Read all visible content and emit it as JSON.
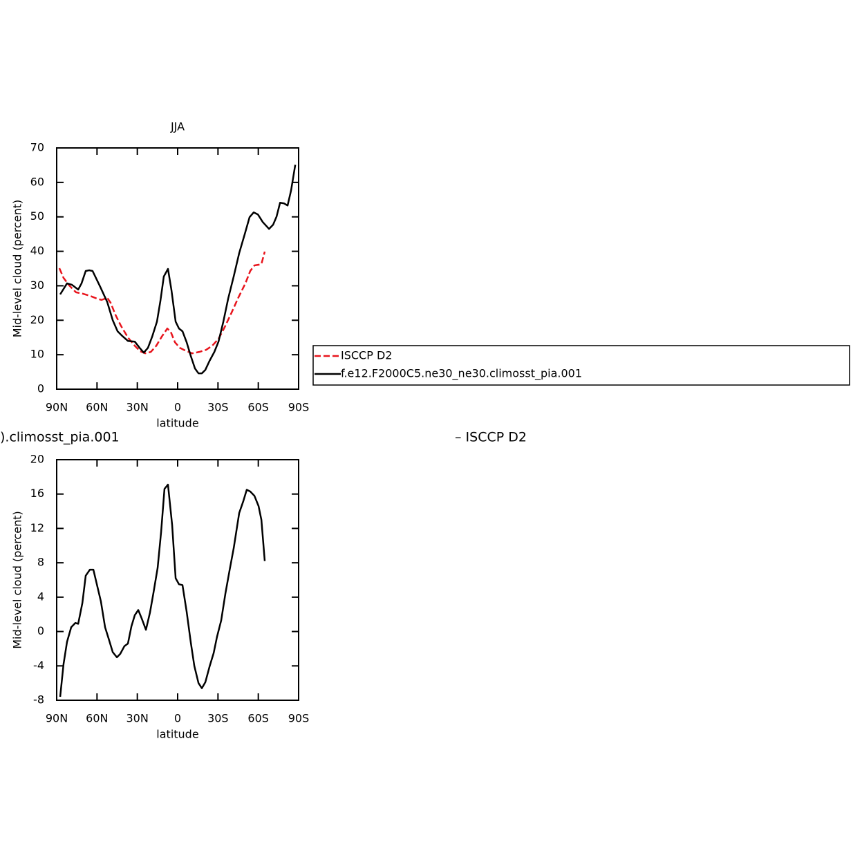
{
  "chart_data": [
    {
      "type": "line",
      "title": "JJA",
      "xlabel": "latitude",
      "ylabel": "Mid-level cloud (percent)",
      "xlim": [
        90,
        -90
      ],
      "xticks": [
        {
          "value": 90,
          "label": "90N"
        },
        {
          "value": 60,
          "label": "60N"
        },
        {
          "value": 30,
          "label": "30N"
        },
        0,
        {
          "value": -30,
          "label": "30S"
        },
        {
          "value": -60,
          "label": "60S"
        },
        {
          "value": -90,
          "label": "90S"
        }
      ],
      "ylim": [
        0,
        70
      ],
      "yticks": [
        0,
        10,
        20,
        30,
        40,
        50,
        60,
        70
      ],
      "legend": "right",
      "series": [
        {
          "name": "ISCCP D2",
          "color": "#e8141c",
          "dash": true,
          "x": [
            88,
            84.9,
            80.7,
            75.6,
            70.5,
            65.3,
            60.2,
            56.6,
            52.4,
            49.9,
            46.3,
            42.2,
            37,
            31.9,
            27.8,
            24.2,
            20,
            15.9,
            11.9,
            7.7,
            5.1,
            2,
            -1.6,
            -5.7,
            -10.8,
            -16,
            -21.1,
            -25.7,
            -30.4,
            -35,
            -40.1,
            -45.3,
            -50.4,
            -54,
            -57.1,
            -60.2,
            -62.3,
            -64.8
          ],
          "values": [
            35.1,
            32.3,
            30.1,
            28.1,
            27.7,
            27.1,
            26.3,
            25.9,
            26.5,
            25.1,
            21.6,
            18.4,
            15,
            12.6,
            11,
            10.4,
            10.8,
            12.6,
            15.2,
            17.6,
            16.6,
            13.6,
            12,
            11.2,
            10.4,
            10.8,
            11.4,
            12.6,
            14.6,
            18,
            22.2,
            26.7,
            30.7,
            34.3,
            35.9,
            36.1,
            36.3,
            39.9
          ]
        },
        {
          "name": "f.e12.F2000C5.ne30_ne30.climosst_pia.001",
          "color": "#000000",
          "dash": false,
          "x": [
            87.4,
            82.3,
            78.7,
            74,
            71.5,
            68.4,
            65.8,
            63.3,
            57.6,
            52.4,
            48.3,
            44.7,
            41.1,
            37,
            31.9,
            28.3,
            25.2,
            22.1,
            19,
            15.4,
            12.8,
            10.3,
            7.2,
            4.6,
            1.5,
            -1,
            -3.6,
            -6.7,
            -9.8,
            -12.9,
            -15.5,
            -18,
            -20.6,
            -23.7,
            -27.3,
            -30.4,
            -34,
            -37.6,
            -41.7,
            -45.8,
            -50,
            -53.5,
            -56.6,
            -59.7,
            -63.3,
            -68,
            -71,
            -73.6,
            -76.2,
            -79.2,
            -81.8,
            -84.4,
            -87.5
          ],
          "values": [
            27.5,
            30.7,
            30.3,
            28.9,
            30.7,
            34.3,
            34.5,
            34.3,
            29.7,
            25.3,
            20,
            16.8,
            15.4,
            14,
            13.8,
            12,
            10.6,
            12,
            15.2,
            19.6,
            25.7,
            32.7,
            34.9,
            28.7,
            19.6,
            17.6,
            16.8,
            13.6,
            9.6,
            6,
            4.6,
            4.6,
            5.6,
            8.2,
            10.8,
            13.8,
            19.6,
            26.3,
            32.7,
            39.5,
            45.1,
            49.9,
            51.3,
            50.7,
            48.5,
            46.5,
            47.7,
            50.1,
            54.1,
            53.9,
            53.3,
            57.7,
            65.1
          ]
        }
      ]
    },
    {
      "type": "line",
      "left_title": ").climosst_pia.001",
      "right_title": "– ISCCP D2",
      "xlabel": "latitude",
      "ylabel": "Mid-level cloud (percent)",
      "xlim": [
        90,
        -90
      ],
      "xticks": [
        {
          "value": 90,
          "label": "90N"
        },
        {
          "value": 60,
          "label": "60N"
        },
        {
          "value": 30,
          "label": "30N"
        },
        0,
        {
          "value": -30,
          "label": "30S"
        },
        {
          "value": -60,
          "label": "60S"
        },
        {
          "value": -90,
          "label": "90S"
        }
      ],
      "ylim": [
        -8,
        20
      ],
      "yticks": [
        -8,
        -4,
        0,
        4,
        8,
        12,
        16,
        20
      ],
      "series": [
        {
          "color": "#000000",
          "dash": false,
          "x": [
            87.4,
            84.9,
            82.3,
            79.2,
            76.1,
            74,
            70.9,
            68.4,
            65.3,
            62.7,
            57.1,
            54,
            51.4,
            48.3,
            45.2,
            42.7,
            39.6,
            37,
            34.4,
            31.9,
            29.3,
            26.7,
            23.6,
            20.6,
            18,
            14.9,
            12.3,
            9.8,
            7.2,
            4.1,
            1.5,
            -1,
            -3.6,
            -6.7,
            -9.8,
            -12.4,
            -15.5,
            -18,
            -20.6,
            -23.7,
            -26.8,
            -29.3,
            -32.4,
            -35.5,
            -38.6,
            -41.7,
            -45.8,
            -48.9,
            -51.4,
            -54,
            -57.1,
            -60.2,
            -62.3,
            -64.8
          ],
          "values": [
            -7.6,
            -3.8,
            -1.2,
            0.5,
            1,
            0.9,
            3.3,
            6.5,
            7.2,
            7.2,
            3.5,
            0.5,
            -0.8,
            -2.4,
            -3,
            -2.6,
            -1.7,
            -1.4,
            0.6,
            1.9,
            2.5,
            1.5,
            0.2,
            2.2,
            4.5,
            7.4,
            11.6,
            16.6,
            17.1,
            12.4,
            6.2,
            5.5,
            5.4,
            2.3,
            -1.3,
            -4,
            -6,
            -6.6,
            -5.9,
            -4.1,
            -2.5,
            -0.6,
            1.3,
            4.4,
            7.1,
            9.7,
            13.8,
            15.2,
            16.5,
            16.3,
            15.8,
            14.6,
            13,
            8.2
          ]
        }
      ]
    }
  ]
}
